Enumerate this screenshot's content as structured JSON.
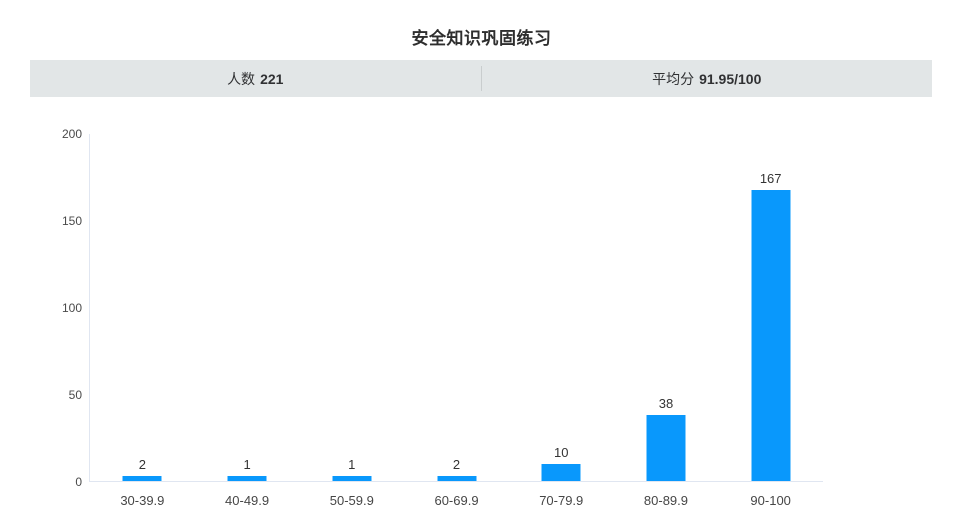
{
  "title": "安全知识巩固练习",
  "stats": {
    "count_label": "人数",
    "count_value": "221",
    "average_label": "平均分",
    "average_value": "91.95/100"
  },
  "chart_data": {
    "type": "bar",
    "title": "安全知识巩固练习",
    "categories": [
      "30-39.9",
      "40-49.9",
      "50-59.9",
      "60-69.9",
      "70-79.9",
      "80-89.9",
      "90-100"
    ],
    "values": [
      2,
      1,
      1,
      2,
      10,
      38,
      167
    ],
    "xlabel": "",
    "ylabel": "",
    "ylim": [
      0,
      200
    ],
    "yticks": [
      0,
      50,
      100,
      150,
      200
    ],
    "grid": false,
    "legend": "none",
    "value_labels_shown": true,
    "bar_color": "#0998fc"
  },
  "colors": {
    "bar": "#0998fc",
    "axis_line": "#e0e6f1",
    "stats_background": "#e2e6e7",
    "stats_divider": "#c9cdce",
    "title_text": "#2e2e2e",
    "label_text": "#464646"
  }
}
